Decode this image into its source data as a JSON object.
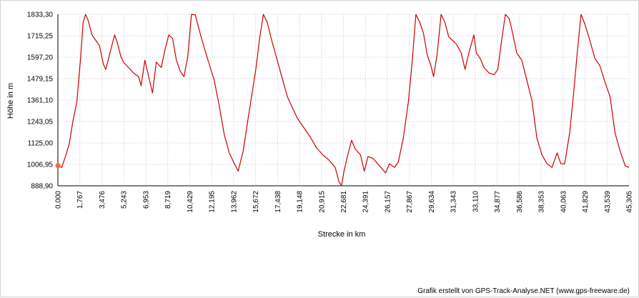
{
  "chart_data": {
    "type": "line",
    "xlabel": "Strecke  in  km",
    "ylabel": "Höhe  in  m",
    "xlim": [
      0.0,
      45.305
    ],
    "ylim": [
      888.9,
      1833.3
    ],
    "x_ticks": [
      "0,000",
      "1,767",
      "3,476",
      "5,243",
      "6,953",
      "8,719",
      "10,429",
      "12,195",
      "13,962",
      "15,672",
      "17,438",
      "19,148",
      "20,915",
      "22,681",
      "24,391",
      "26,157",
      "27,867",
      "29,634",
      "31,343",
      "33,110",
      "34,877",
      "36,586",
      "38,353",
      "40,063",
      "41,829",
      "43,539",
      "45,305"
    ],
    "y_ticks": [
      "1833,30",
      "1715,25",
      "1597,20",
      "1479,15",
      "1361,10",
      "1243,05",
      "1125,00",
      "1006,95",
      "888,90"
    ],
    "grid": true,
    "line_color": "#cc0000",
    "start_marker_color": "#ff6633",
    "series": [
      {
        "x": [
          0.0,
          0.3,
          0.6,
          0.9,
          1.2,
          1.5,
          1.8,
          2.0,
          2.2,
          2.4,
          2.7,
          3.0,
          3.3,
          3.6,
          3.8,
          4.2,
          4.5,
          4.7,
          5.0,
          5.2,
          5.6,
          6.0,
          6.4,
          6.6,
          6.9,
          7.2,
          7.5,
          7.8,
          8.2,
          8.5,
          8.8,
          9.1,
          9.4,
          9.7,
          10.0,
          10.3,
          10.6,
          10.9,
          11.2,
          11.6,
          12.0,
          12.4,
          12.8,
          13.2,
          13.6,
          14.0,
          14.3,
          14.7,
          15.2,
          15.7,
          16.0,
          16.3,
          16.6,
          17.0,
          17.4,
          17.8,
          18.2,
          18.6,
          19.0,
          19.5,
          20.0,
          20.5,
          21.0,
          21.5,
          22.0,
          22.3,
          22.5,
          22.7,
          23.0,
          23.3,
          23.6,
          24.0,
          24.3,
          24.6,
          25.0,
          25.5,
          26.0,
          26.3,
          26.7,
          27.0,
          27.4,
          27.8,
          28.1,
          28.4,
          28.7,
          29.0,
          29.3,
          29.6,
          29.8,
          30.1,
          30.4,
          30.7,
          31.0,
          31.3,
          31.6,
          32.0,
          32.3,
          32.6,
          33.0,
          33.2,
          33.5,
          33.8,
          34.2,
          34.6,
          34.9,
          35.2,
          35.5,
          35.8,
          36.1,
          36.4,
          36.8,
          37.2,
          37.6,
          38.0,
          38.4,
          38.8,
          39.2,
          39.6,
          39.9,
          40.2,
          40.6,
          40.9,
          41.2,
          41.5,
          41.8,
          42.2,
          42.6,
          43.0,
          43.4,
          43.8,
          44.2,
          44.6,
          45.0,
          45.305
        ],
        "y": [
          1000,
          990,
          1050,
          1120,
          1250,
          1350,
          1590,
          1790,
          1833,
          1800,
          1720,
          1690,
          1660,
          1560,
          1530,
          1640,
          1720,
          1680,
          1600,
          1570,
          1540,
          1510,
          1490,
          1440,
          1580,
          1490,
          1400,
          1570,
          1540,
          1640,
          1720,
          1700,
          1580,
          1520,
          1490,
          1600,
          1833,
          1830,
          1750,
          1650,
          1560,
          1470,
          1330,
          1170,
          1070,
          1010,
          970,
          1080,
          1310,
          1530,
          1700,
          1833,
          1790,
          1680,
          1580,
          1480,
          1380,
          1320,
          1260,
          1210,
          1160,
          1100,
          1060,
          1030,
          990,
          910,
          890,
          970,
          1060,
          1140,
          1090,
          1060,
          970,
          1050,
          1040,
          1000,
          960,
          1010,
          990,
          1020,
          1150,
          1350,
          1570,
          1833,
          1790,
          1730,
          1610,
          1550,
          1490,
          1620,
          1833,
          1790,
          1710,
          1690,
          1670,
          1620,
          1530,
          1620,
          1720,
          1620,
          1590,
          1540,
          1510,
          1500,
          1530,
          1690,
          1833,
          1810,
          1720,
          1620,
          1580,
          1470,
          1360,
          1150,
          1060,
          1010,
          990,
          1070,
          1010,
          1010,
          1180,
          1390,
          1620,
          1833,
          1780,
          1690,
          1590,
          1550,
          1460,
          1380,
          1180,
          1080,
          1000,
          990
        ]
      }
    ]
  },
  "credit": "Grafik erstellt von GPS-Track-Analyse.NET (www.gps-freeware.de)"
}
